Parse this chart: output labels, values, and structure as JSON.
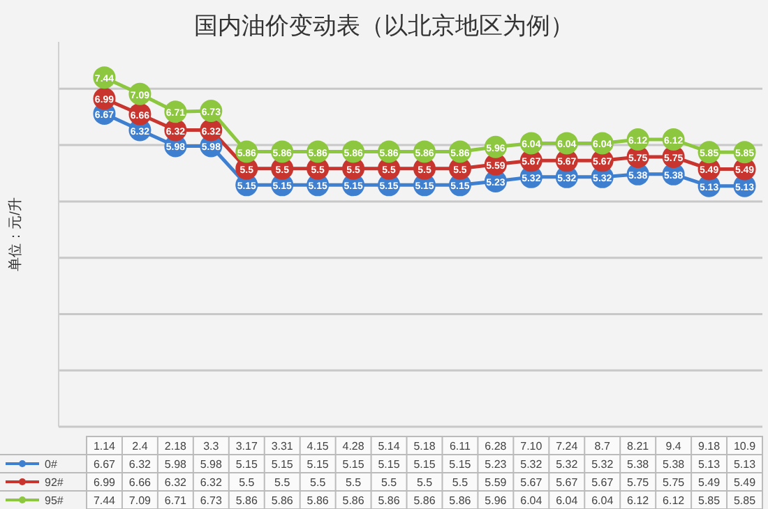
{
  "chart_data": {
    "type": "line",
    "title": "国内油价变动表（以北京地区为例）",
    "ylabel": "单位：元/升",
    "categories": [
      "1.14",
      "2.4",
      "2.18",
      "3.3",
      "3.17",
      "3.31",
      "4.15",
      "4.28",
      "5.14",
      "5.18",
      "6.11",
      "6.28",
      "7.10",
      "7.24",
      "8.7",
      "8.21",
      "9.4",
      "9.18",
      "10.9"
    ],
    "series": [
      {
        "name": "0#",
        "color": "#3f7fd0",
        "values": [
          6.67,
          6.32,
          5.98,
          5.98,
          5.15,
          5.15,
          5.15,
          5.15,
          5.15,
          5.15,
          5.15,
          5.23,
          5.32,
          5.32,
          5.32,
          5.38,
          5.38,
          5.13,
          5.13
        ]
      },
      {
        "name": "92#",
        "color": "#c8352f",
        "values": [
          6.99,
          6.66,
          6.32,
          6.32,
          5.5,
          5.5,
          5.5,
          5.5,
          5.5,
          5.5,
          5.5,
          5.59,
          5.67,
          5.67,
          5.67,
          5.75,
          5.75,
          5.49,
          5.49
        ]
      },
      {
        "name": "95#",
        "color": "#8dc63f",
        "values": [
          7.44,
          7.09,
          6.71,
          6.73,
          5.86,
          5.86,
          5.86,
          5.86,
          5.86,
          5.86,
          5.86,
          5.96,
          6.04,
          6.04,
          6.04,
          6.12,
          6.12,
          5.85,
          5.85
        ]
      }
    ],
    "annotations": [
      {
        "text": "6.67",
        "x": "1.14",
        "y": 6.67
      },
      {
        "text": "6.32",
        "x": "2.4",
        "y": 6.32
      },
      {
        "text": "5.98",
        "x": "2.18",
        "y": 5.98
      },
      {
        "text": "5.98",
        "x": "3.3",
        "y": 5.98
      },
      {
        "text": "5.15",
        "x": "3.17",
        "y": 5.15
      },
      {
        "text": "5.15",
        "x": "3.31",
        "y": 5.15
      },
      {
        "text": "5.15",
        "x": "4.15",
        "y": 5.15
      },
      {
        "text": "5.15",
        "x": "4.28",
        "y": 5.15
      },
      {
        "text": "5.15",
        "x": "5.14",
        "y": 5.15
      },
      {
        "text": "5.15",
        "x": "5.18",
        "y": 5.15
      },
      {
        "text": "5.15",
        "x": "6.11",
        "y": 5.15
      },
      {
        "text": "5.23",
        "x": "6.28",
        "y": 5.23
      },
      {
        "text": "5.32",
        "x": "7.10",
        "y": 5.32
      },
      {
        "text": "5.32",
        "x": "7.24",
        "y": 5.32
      },
      {
        "text": "5.32",
        "x": "8.7",
        "y": 5.32
      },
      {
        "text": "5.38",
        "x": "8.21",
        "y": 5.38
      },
      {
        "text": "5.38",
        "x": "9.4",
        "y": 5.38
      },
      {
        "text": "5.13",
        "x": "9.18",
        "y": 5.13
      },
      {
        "text": "5.13",
        "x": "10.9",
        "y": 5.13
      },
      {
        "text": "6.99",
        "x": "1.14",
        "y": 6.99
      },
      {
        "text": "6.66",
        "x": "2.4",
        "y": 6.66
      },
      {
        "text": "6.32",
        "x": "2.18",
        "y": 6.32
      },
      {
        "text": "6.32",
        "x": "3.3",
        "y": 6.32
      },
      {
        "text": "5.5",
        "x": "3.17",
        "y": 5.5
      },
      {
        "text": "5.5",
        "x": "3.31",
        "y": 5.5
      },
      {
        "text": "5.5",
        "x": "4.15",
        "y": 5.5
      },
      {
        "text": "5.5",
        "x": "4.28",
        "y": 5.5
      },
      {
        "text": "5.5",
        "x": "5.14",
        "y": 5.5
      },
      {
        "text": "5.5",
        "x": "5.18",
        "y": 5.5
      },
      {
        "text": "5.5",
        "x": "6.11",
        "y": 5.5
      },
      {
        "text": "5.59",
        "x": "6.28",
        "y": 5.59
      },
      {
        "text": "5.67",
        "x": "7.10",
        "y": 5.67
      },
      {
        "text": "5.67",
        "x": "7.24",
        "y": 5.67
      },
      {
        "text": "5.67",
        "x": "8.7",
        "y": 5.67
      },
      {
        "text": "5.75",
        "x": "8.21",
        "y": 5.75
      },
      {
        "text": "5.75",
        "x": "9.4",
        "y": 5.75
      },
      {
        "text": "5.49",
        "x": "9.18",
        "y": 5.49
      },
      {
        "text": "5.49",
        "x": "10.9",
        "y": 5.49
      },
      {
        "text": "7.44",
        "x": "1.14",
        "y": 7.44
      },
      {
        "text": "7.09",
        "x": "2.4",
        "y": 7.09
      },
      {
        "text": "6.71",
        "x": "2.18",
        "y": 6.71
      },
      {
        "text": "6.73",
        "x": "3.3",
        "y": 6.73
      },
      {
        "text": "5.86",
        "x": "3.17",
        "y": 5.86
      },
      {
        "text": "5.86",
        "x": "3.31",
        "y": 5.86
      },
      {
        "text": "5.86",
        "x": "4.15",
        "y": 5.86
      },
      {
        "text": "5.86",
        "x": "4.28",
        "y": 5.86
      },
      {
        "text": "5.86",
        "x": "5.14",
        "y": 5.86
      },
      {
        "text": "5.86",
        "x": "5.18",
        "y": 5.86
      },
      {
        "text": "5.86",
        "x": "6.11",
        "y": 5.86
      },
      {
        "text": "5.96",
        "x": "6.28",
        "y": 5.96
      },
      {
        "text": "6.04",
        "x": "7.10",
        "y": 6.04
      },
      {
        "text": "6.04",
        "x": "7.24",
        "y": 6.04
      },
      {
        "text": "6.04",
        "x": "8.7",
        "y": 6.04
      },
      {
        "text": "6.12",
        "x": "8.21",
        "y": 6.12
      },
      {
        "text": "6.12",
        "x": "9.4",
        "y": 6.12
      },
      {
        "text": "5.85",
        "x": "9.18",
        "y": 5.85
      },
      {
        "text": "5.85",
        "x": "10.9",
        "y": 5.85
      }
    ],
    "ylim": [
      0,
      8.2
    ],
    "yticks": [
      {
        "value": 0,
        "label": null
      },
      {
        "value": 1.2,
        "label": null
      },
      {
        "value": 2.4,
        "label": null
      },
      {
        "value": 3.6,
        "label": null
      },
      {
        "value": 4.8,
        "label": null
      },
      {
        "value": 6,
        "label": null
      },
      {
        "value": 7.2,
        "label": null
      }
    ],
    "grid": "y",
    "legend": "bottom",
    "data_labels": true,
    "marker": "circle",
    "line_style": "solid"
  }
}
